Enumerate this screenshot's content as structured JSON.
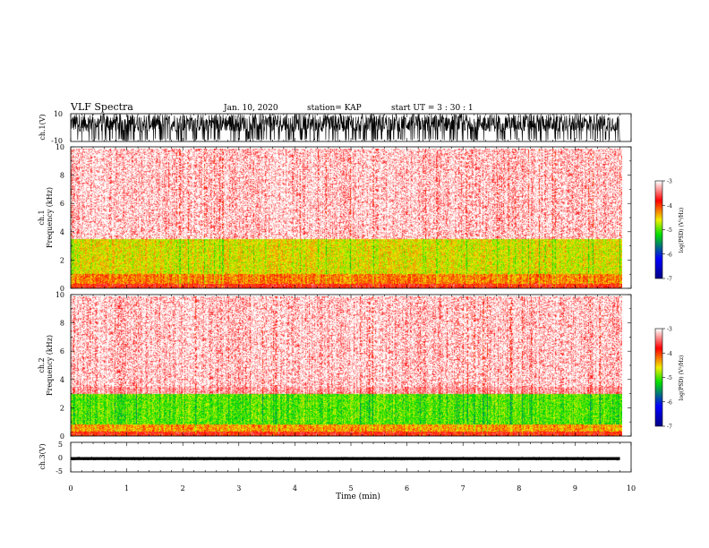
{
  "header": {
    "title": "VLF Spectra",
    "date": "Jan. 10, 2020",
    "station": "station= KAP",
    "start": "start  UT =  3 : 30 : 1"
  },
  "chart_data": [
    {
      "type": "line",
      "id": "ch1-waveform",
      "ylabel": "ch.1(V)",
      "ylim": [
        -10,
        10
      ],
      "yticks": [
        "10",
        "-10"
      ],
      "xlim": [
        0,
        10
      ],
      "data_extent_min": [
        0,
        9.8
      ],
      "description_values": {
        "typical_low": -3,
        "typical_high": 10
      }
    },
    {
      "type": "heatmap",
      "id": "ch1-spectrogram",
      "ylabel": "ch.1\nFrequency (kHz)",
      "ylabel_line1": "ch.1",
      "ylabel_line2": "Frequency (kHz)",
      "ylim": [
        0,
        10
      ],
      "yticks": [
        "0",
        "2",
        "4",
        "6",
        "8",
        "10"
      ],
      "xlim": [
        0,
        10
      ],
      "data_extent_min": [
        0,
        9.8
      ],
      "bands": [
        {
          "f_lo": 0.0,
          "f_hi": 0.3,
          "level": -3.8
        },
        {
          "f_lo": 0.3,
          "f_hi": 1.0,
          "level": -4.2
        },
        {
          "f_lo": 1.0,
          "f_hi": 3.5,
          "level": -4.6
        },
        {
          "f_lo": 3.5,
          "f_hi": 10.0,
          "level": -3.3
        }
      ],
      "colorbar": {
        "label": "log(PSD) (V²/Hz)",
        "range": [
          -7,
          -3
        ],
        "ticks": [
          "-3",
          "-4",
          "-5",
          "-6",
          "-7"
        ]
      }
    },
    {
      "type": "heatmap",
      "id": "ch2-spectrogram",
      "ylabel": "ch.2\nFrequency (kHz)",
      "ylabel_line1": "ch.2",
      "ylabel_line2": "Frequency (kHz)",
      "ylim": [
        0,
        10
      ],
      "yticks": [
        "0",
        "2",
        "4",
        "6",
        "8",
        "10"
      ],
      "xlim": [
        0,
        10
      ],
      "data_extent_min": [
        0,
        9.8
      ],
      "bands": [
        {
          "f_lo": 0.0,
          "f_hi": 0.3,
          "level": -3.8
        },
        {
          "f_lo": 0.3,
          "f_hi": 0.8,
          "level": -4.3
        },
        {
          "f_lo": 0.8,
          "f_hi": 3.0,
          "level": -5.0
        },
        {
          "f_lo": 3.0,
          "f_hi": 10.0,
          "level": -3.3
        }
      ],
      "colorbar": {
        "label": "log(PSD) (V²/Hz)",
        "range": [
          -7,
          -3
        ],
        "ticks": [
          "-3",
          "-4",
          "-5",
          "-6",
          "-7"
        ]
      }
    },
    {
      "type": "line",
      "id": "ch3-waveform",
      "ylabel": "ch.3(V)",
      "ylim": [
        -5,
        5
      ],
      "yticks": [
        "5",
        "0",
        "-5"
      ],
      "xlim": [
        0,
        10
      ],
      "data_extent_min": [
        0,
        9.8
      ],
      "description_values": {
        "typical_low": -1,
        "typical_high": 0
      }
    }
  ],
  "xaxis": {
    "label": "Time (min)",
    "ticks": [
      "0",
      "1",
      "2",
      "3",
      "4",
      "5",
      "6",
      "7",
      "8",
      "9",
      "10"
    ]
  },
  "colors": {
    "low": "#00008b",
    "mid_low": "#0000ff",
    "green": "#00e000",
    "yellow": "#f0f000",
    "red": "#ff0000",
    "white": "#ffffff"
  }
}
